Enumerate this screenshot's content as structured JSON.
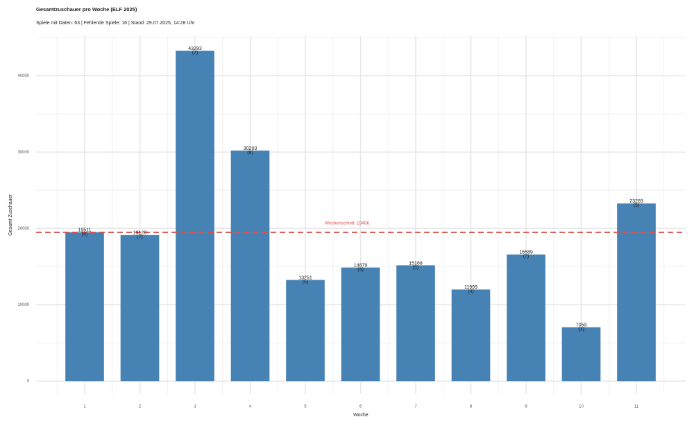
{
  "chart_data": {
    "type": "bar",
    "title": "Gesamtzuschauer pro Woche (ELF 2025)",
    "subtitle": "Spiele mit Daten: 63 | Fehlende Spiele: 16 | Stand: 29.07.2025, 14:28 Uhr",
    "x_label": "Woche",
    "y_label": "Gesamt Zuschauer",
    "categories": [
      "1",
      "2",
      "3",
      "4",
      "5",
      "6",
      "7",
      "8",
      "9",
      "10",
      "11"
    ],
    "values": [
      19511,
      19128,
      43283,
      30203,
      13251,
      14879,
      15168,
      11999,
      16589,
      7059,
      23269
    ],
    "bar_notes": [
      "(8)",
      "(7)",
      "(7)",
      "(6)",
      "(5)",
      "(4)",
      "(5)",
      "(4)",
      "(7)",
      "(3)",
      "(5)"
    ],
    "color": "#4682b4",
    "mean_line": {
      "value": 19486,
      "label": "Wochenschnitt: 19486",
      "color": "#d9534f"
    },
    "ylim": [
      -1700,
      45200
    ],
    "yticks": [
      0,
      10000,
      20000,
      30000,
      40000
    ],
    "yminor": [
      5000,
      15000,
      25000,
      35000,
      45000
    ],
    "grid": true
  }
}
